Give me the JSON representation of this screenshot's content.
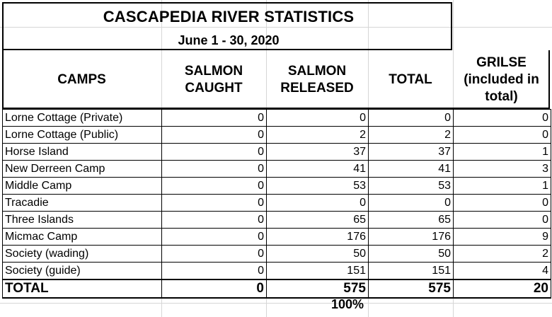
{
  "title": "CASCAPEDIA RIVER STATISTICS",
  "subtitle": "June 1 - 30, 2020",
  "headers": {
    "camps": "CAMPS",
    "salmon_caught": [
      "SALMON",
      "CAUGHT"
    ],
    "salmon_released": [
      "SALMON",
      "RELEASED"
    ],
    "total": "TOTAL",
    "grilse": [
      "GRILSE",
      "(included in",
      "total)"
    ]
  },
  "rows": [
    {
      "camp": "Lorne Cottage (Private)",
      "caught": "0",
      "released": "0",
      "total": "0",
      "grilse": "0"
    },
    {
      "camp": "Lorne Cottage (Public)",
      "caught": "0",
      "released": "2",
      "total": "2",
      "grilse": "0"
    },
    {
      "camp": "Horse Island",
      "caught": "0",
      "released": "37",
      "total": "37",
      "grilse": "1"
    },
    {
      "camp": "New Derreen Camp",
      "caught": "0",
      "released": "41",
      "total": "41",
      "grilse": "3"
    },
    {
      "camp": "Middle Camp",
      "caught": "0",
      "released": "53",
      "total": "53",
      "grilse": "1"
    },
    {
      "camp": "Tracadie",
      "caught": "0",
      "released": "0",
      "total": "0",
      "grilse": "0"
    },
    {
      "camp": "Three Islands",
      "caught": "0",
      "released": "65",
      "total": "65",
      "grilse": "0"
    },
    {
      "camp": "Micmac Camp",
      "caught": "0",
      "released": "176",
      "total": "176",
      "grilse": "9"
    },
    {
      "camp": "Society (wading)",
      "caught": "0",
      "released": "50",
      "total": "50",
      "grilse": "2"
    },
    {
      "camp": "Society (guide)",
      "caught": "0",
      "released": "151",
      "total": "151",
      "grilse": "4"
    }
  ],
  "totals": {
    "camp": "TOTAL",
    "caught": "0",
    "released": "575",
    "total": "575",
    "grilse": "20"
  },
  "release_percentage": "100%"
}
